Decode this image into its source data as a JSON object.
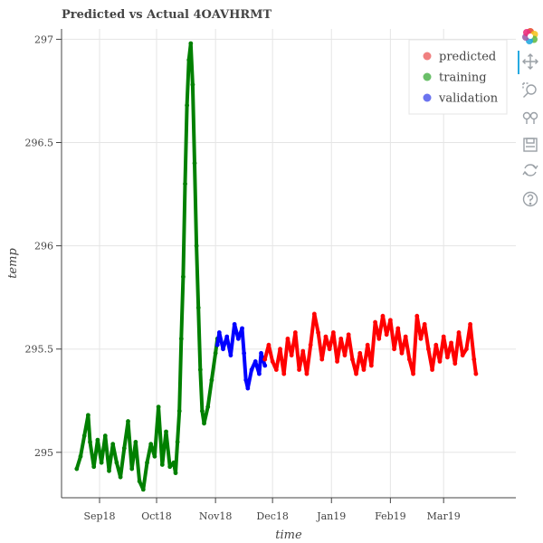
{
  "title": "Predicted vs Actual 4OAVHRMT",
  "toolbar": {
    "tools": [
      "bokeh-logo-icon",
      "pan-icon",
      "box-zoom-icon",
      "wheel-zoom-icon",
      "save-icon",
      "reset-icon",
      "help-icon"
    ]
  },
  "chart_data": {
    "type": "scatter",
    "title": "Predicted vs Actual 4OAVHRMT",
    "xlabel": "time",
    "ylabel": "temp",
    "xlim": [
      "2018-08-12",
      "2019-04-08"
    ],
    "ylim": [
      294.78,
      297.05
    ],
    "x_ticks": [
      "2018-09-01",
      "2018-10-01",
      "2018-11-01",
      "2018-12-01",
      "2019-01-01",
      "2019-02-01",
      "2019-03-01"
    ],
    "x_tick_labels": [
      "Sep18",
      "Oct18",
      "Nov18",
      "Dec18",
      "Jan19",
      "Feb19",
      "Mar19"
    ],
    "y_ticks": [
      295,
      295.5,
      296,
      296.5,
      297
    ],
    "y_tick_labels": [
      "295",
      "295.5",
      "296",
      "296.5",
      "297"
    ],
    "grid": true,
    "legend_position": "top-right",
    "series": [
      {
        "name": "predicted",
        "color": "#ff0000",
        "legend_color": "#f08080",
        "points": [
          [
            "2018-11-27",
            295.45
          ],
          [
            "2018-11-29",
            295.52
          ],
          [
            "2018-12-01",
            295.44
          ],
          [
            "2018-12-03",
            295.4
          ],
          [
            "2018-12-05",
            295.5
          ],
          [
            "2018-12-07",
            295.38
          ],
          [
            "2018-12-09",
            295.55
          ],
          [
            "2018-12-11",
            295.47
          ],
          [
            "2018-12-13",
            295.58
          ],
          [
            "2018-12-15",
            295.4
          ],
          [
            "2018-12-17",
            295.49
          ],
          [
            "2018-12-19",
            295.38
          ],
          [
            "2018-12-21",
            295.52
          ],
          [
            "2018-12-23",
            295.67
          ],
          [
            "2018-12-25",
            295.58
          ],
          [
            "2018-12-27",
            295.45
          ],
          [
            "2018-12-29",
            295.56
          ],
          [
            "2018-12-31",
            295.5
          ],
          [
            "2019-01-02",
            295.58
          ],
          [
            "2019-01-04",
            295.44
          ],
          [
            "2019-01-06",
            295.55
          ],
          [
            "2019-01-08",
            295.47
          ],
          [
            "2019-01-10",
            295.57
          ],
          [
            "2019-01-12",
            295.45
          ],
          [
            "2019-01-14",
            295.38
          ],
          [
            "2019-01-16",
            295.48
          ],
          [
            "2019-01-18",
            295.4
          ],
          [
            "2019-01-20",
            295.52
          ],
          [
            "2019-01-22",
            295.42
          ],
          [
            "2019-01-24",
            295.63
          ],
          [
            "2019-01-26",
            295.55
          ],
          [
            "2019-01-28",
            295.66
          ],
          [
            "2019-01-30",
            295.57
          ],
          [
            "2019-02-01",
            295.64
          ],
          [
            "2019-02-03",
            295.5
          ],
          [
            "2019-02-05",
            295.6
          ],
          [
            "2019-02-07",
            295.48
          ],
          [
            "2019-02-09",
            295.56
          ],
          [
            "2019-02-11",
            295.45
          ],
          [
            "2019-02-13",
            295.38
          ],
          [
            "2019-02-15",
            295.66
          ],
          [
            "2019-02-17",
            295.55
          ],
          [
            "2019-02-19",
            295.62
          ],
          [
            "2019-02-21",
            295.5
          ],
          [
            "2019-02-23",
            295.4
          ],
          [
            "2019-02-25",
            295.52
          ],
          [
            "2019-02-27",
            295.44
          ],
          [
            "2019-03-01",
            295.56
          ],
          [
            "2019-03-03",
            295.46
          ],
          [
            "2019-03-05",
            295.53
          ],
          [
            "2019-03-07",
            295.43
          ],
          [
            "2019-03-09",
            295.58
          ],
          [
            "2019-03-11",
            295.47
          ],
          [
            "2019-03-13",
            295.5
          ],
          [
            "2019-03-15",
            295.62
          ],
          [
            "2019-03-17",
            295.45
          ],
          [
            "2019-03-18",
            295.38
          ]
        ]
      },
      {
        "name": "training",
        "color": "#008000",
        "legend_color": "#6abf69",
        "points": [
          [
            "2018-08-20",
            294.92
          ],
          [
            "2018-08-22",
            294.98
          ],
          [
            "2018-08-24",
            295.08
          ],
          [
            "2018-08-26",
            295.18
          ],
          [
            "2018-08-27",
            295.05
          ],
          [
            "2018-08-29",
            294.93
          ],
          [
            "2018-08-31",
            295.06
          ],
          [
            "2018-09-02",
            294.95
          ],
          [
            "2018-09-04",
            295.08
          ],
          [
            "2018-09-06",
            294.91
          ],
          [
            "2018-09-08",
            295.04
          ],
          [
            "2018-09-10",
            294.95
          ],
          [
            "2018-09-12",
            294.88
          ],
          [
            "2018-09-14",
            295.02
          ],
          [
            "2018-09-16",
            295.15
          ],
          [
            "2018-09-18",
            294.92
          ],
          [
            "2018-09-20",
            295.05
          ],
          [
            "2018-09-22",
            294.86
          ],
          [
            "2018-09-24",
            294.82
          ],
          [
            "2018-09-26",
            294.95
          ],
          [
            "2018-09-28",
            295.04
          ],
          [
            "2018-09-30",
            294.98
          ],
          [
            "2018-10-02",
            295.22
          ],
          [
            "2018-10-04",
            294.94
          ],
          [
            "2018-10-06",
            295.1
          ],
          [
            "2018-10-08",
            294.93
          ],
          [
            "2018-10-10",
            294.95
          ],
          [
            "2018-10-11",
            294.9
          ],
          [
            "2018-10-12",
            295.05
          ],
          [
            "2018-10-13",
            295.2
          ],
          [
            "2018-10-14",
            295.55
          ],
          [
            "2018-10-15",
            295.85
          ],
          [
            "2018-10-16",
            296.3
          ],
          [
            "2018-10-17",
            296.68
          ],
          [
            "2018-10-18",
            296.9
          ],
          [
            "2018-10-19",
            296.98
          ],
          [
            "2018-10-20",
            296.78
          ],
          [
            "2018-10-21",
            296.4
          ],
          [
            "2018-10-22",
            296.0
          ],
          [
            "2018-10-23",
            295.7
          ],
          [
            "2018-10-24",
            295.4
          ],
          [
            "2018-10-25",
            295.2
          ],
          [
            "2018-10-26",
            295.14
          ],
          [
            "2018-10-28",
            295.22
          ],
          [
            "2018-10-30",
            295.35
          ],
          [
            "2018-11-01",
            295.48
          ],
          [
            "2018-11-02",
            295.55
          ]
        ]
      },
      {
        "name": "validation",
        "color": "#0000ff",
        "legend_color": "#6b74ef",
        "points": [
          [
            "2018-11-02",
            295.52
          ],
          [
            "2018-11-03",
            295.58
          ],
          [
            "2018-11-05",
            295.5
          ],
          [
            "2018-11-07",
            295.56
          ],
          [
            "2018-11-09",
            295.47
          ],
          [
            "2018-11-11",
            295.62
          ],
          [
            "2018-11-13",
            295.55
          ],
          [
            "2018-11-15",
            295.6
          ],
          [
            "2018-11-16",
            295.48
          ],
          [
            "2018-11-17",
            295.35
          ],
          [
            "2018-11-18",
            295.31
          ],
          [
            "2018-11-20",
            295.4
          ],
          [
            "2018-11-22",
            295.44
          ],
          [
            "2018-11-24",
            295.38
          ],
          [
            "2018-11-25",
            295.48
          ],
          [
            "2018-11-27",
            295.42
          ]
        ]
      }
    ]
  }
}
